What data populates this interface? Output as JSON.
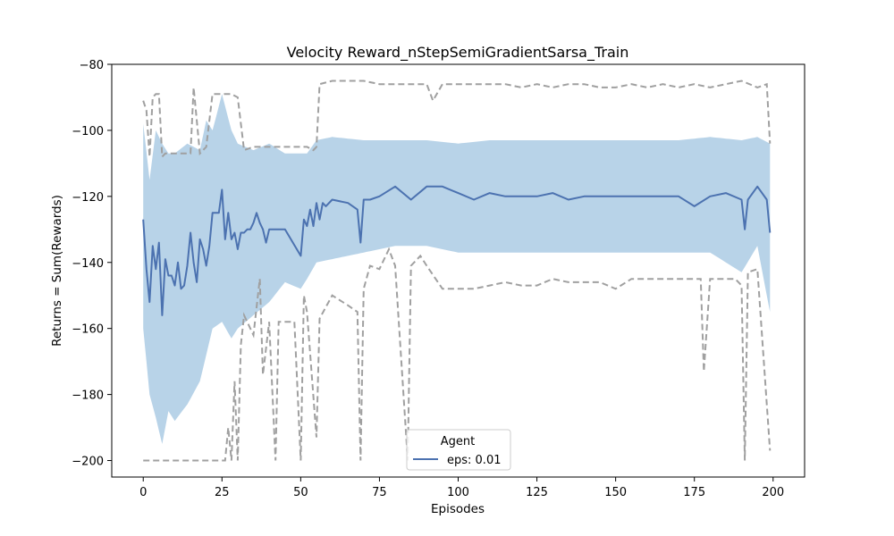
{
  "chart_data": {
    "type": "line",
    "title": "Velocity Reward_nStepSemiGradientSarsa_Train",
    "xlabel": "Episodes",
    "ylabel": "Returns = Sum(Rewards)",
    "xlim": [
      -10,
      210
    ],
    "ylim": [
      -205,
      -80
    ],
    "xticks": [
      0,
      25,
      50,
      75,
      100,
      125,
      150,
      175,
      200
    ],
    "yticks": [
      -200,
      -180,
      -160,
      -140,
      -120,
      -100,
      -80
    ],
    "grid": false,
    "legend": {
      "title": "Agent",
      "position": "lower-center"
    },
    "series": [
      {
        "name": "eps: 0.01",
        "color": "#4c72b0",
        "band_color": "#b8d3e8",
        "mean": {
          "x": [
            0,
            1,
            2,
            3,
            4,
            5,
            6,
            7,
            8,
            9,
            10,
            11,
            12,
            13,
            14,
            15,
            16,
            17,
            18,
            19,
            20,
            21,
            22,
            23,
            24,
            25,
            26,
            27,
            28,
            29,
            30,
            31,
            32,
            33,
            34,
            35,
            36,
            37,
            38,
            39,
            40,
            45,
            50,
            51,
            52,
            53,
            54,
            55,
            56,
            57,
            58,
            60,
            65,
            68,
            69,
            70,
            72,
            75,
            80,
            85,
            90,
            95,
            100,
            105,
            110,
            115,
            120,
            125,
            130,
            135,
            140,
            145,
            150,
            155,
            160,
            165,
            170,
            175,
            180,
            185,
            190,
            191,
            192,
            195,
            198,
            199
          ],
          "y": [
            -127,
            -142,
            -152,
            -135,
            -142,
            -134,
            -156,
            -139,
            -144,
            -144,
            -147,
            -140,
            -148,
            -147,
            -141,
            -131,
            -140,
            -146,
            -133,
            -136,
            -141,
            -135,
            -125,
            -125,
            -125,
            -118,
            -133,
            -125,
            -133,
            -131,
            -136,
            -131,
            -131,
            -130,
            -130,
            -128,
            -125,
            -128,
            -130,
            -134,
            -130,
            -130,
            -138,
            -127,
            -129,
            -124,
            -129,
            -122,
            -127,
            -122,
            -123,
            -121,
            -122,
            -124,
            -134,
            -121,
            -121,
            -120,
            -117,
            -121,
            -117,
            -117,
            -119,
            -121,
            -119,
            -120,
            -120,
            -120,
            -119,
            -121,
            -120,
            -120,
            -120,
            -120,
            -120,
            -120,
            -120,
            -123,
            -120,
            -119,
            -121,
            -130,
            -121,
            -117,
            -121,
            -131
          ]
        },
        "upper_std": {
          "x": [
            0,
            2,
            4,
            6,
            8,
            10,
            14,
            18,
            20,
            22,
            25,
            28,
            30,
            35,
            40,
            45,
            50,
            52,
            55,
            60,
            70,
            80,
            90,
            100,
            110,
            120,
            130,
            140,
            150,
            160,
            170,
            180,
            190,
            195,
            199
          ],
          "y": [
            -98,
            -115,
            -100,
            -104,
            -107,
            -107,
            -104,
            -106,
            -97,
            -100,
            -89,
            -100,
            -104,
            -106,
            -104,
            -107,
            -107,
            -107,
            -103,
            -102,
            -103,
            -103,
            -103,
            -104,
            -103,
            -103,
            -103,
            -103,
            -103,
            -103,
            -103,
            -102,
            -103,
            -102,
            -104
          ]
        },
        "lower_std": {
          "x": [
            0,
            2,
            4,
            6,
            8,
            10,
            14,
            18,
            20,
            22,
            25,
            28,
            30,
            35,
            40,
            45,
            50,
            52,
            55,
            60,
            70,
            80,
            90,
            100,
            110,
            120,
            130,
            140,
            150,
            160,
            170,
            180,
            190,
            195,
            199
          ],
          "y": [
            -160,
            -180,
            -187,
            -195,
            -185,
            -188,
            -183,
            -176,
            -168,
            -160,
            -158,
            -163,
            -160,
            -156,
            -152,
            -146,
            -148,
            -145,
            -140,
            -139,
            -137,
            -135,
            -135,
            -137,
            -137,
            -137,
            -137,
            -137,
            -137,
            -137,
            -137,
            -137,
            -143,
            -135,
            -155
          ]
        },
        "max": {
          "x": [
            0,
            1,
            2,
            3,
            4,
            5,
            6,
            7,
            8,
            10,
            15,
            16,
            18,
            20,
            22,
            25,
            28,
            30,
            32,
            35,
            40,
            45,
            50,
            52,
            54,
            55,
            56,
            60,
            70,
            75,
            80,
            85,
            90,
            92,
            95,
            100,
            105,
            110,
            115,
            120,
            125,
            130,
            135,
            140,
            145,
            150,
            155,
            160,
            165,
            170,
            175,
            180,
            185,
            190,
            195,
            198,
            199
          ],
          "y": [
            -91,
            -94,
            -108,
            -90,
            -89,
            -89,
            -108,
            -107,
            -107,
            -107,
            -107,
            -87,
            -107,
            -105,
            -89,
            -89,
            -89,
            -90,
            -106,
            -105,
            -105,
            -105,
            -105,
            -105,
            -106,
            -105,
            -86,
            -85,
            -85,
            -86,
            -86,
            -86,
            -86,
            -91,
            -86,
            -86,
            -86,
            -86,
            -86,
            -87,
            -86,
            -87,
            -86,
            -86,
            -87,
            -87,
            -86,
            -87,
            -86,
            -87,
            -86,
            -87,
            -86,
            -85,
            -87,
            -86,
            -104
          ]
        },
        "min": {
          "x": [
            0,
            5,
            10,
            15,
            20,
            25,
            26,
            27,
            28,
            29,
            30,
            31,
            32,
            35,
            37,
            38,
            40,
            42,
            43,
            44,
            45,
            47,
            48,
            50,
            51,
            52,
            55,
            56,
            60,
            65,
            68,
            69,
            70,
            72,
            75,
            78,
            80,
            84,
            85,
            88,
            90,
            95,
            100,
            105,
            110,
            115,
            120,
            125,
            130,
            135,
            140,
            145,
            150,
            155,
            160,
            165,
            170,
            175,
            177,
            178,
            180,
            185,
            188,
            190,
            191,
            192,
            195,
            199
          ],
          "y": [
            -200,
            -200,
            -200,
            -200,
            -200,
            -200,
            -200,
            -190,
            -200,
            -176,
            -200,
            -165,
            -156,
            -162,
            -145,
            -174,
            -158,
            -200,
            -158,
            -158,
            -158,
            -158,
            -158,
            -200,
            -150,
            -155,
            -193,
            -157,
            -150,
            -153,
            -155,
            -200,
            -148,
            -141,
            -142,
            -136,
            -141,
            -200,
            -141,
            -138,
            -141,
            -148,
            -148,
            -148,
            -147,
            -146,
            -147,
            -147,
            -145,
            -146,
            -146,
            -146,
            -148,
            -145,
            -145,
            -145,
            -145,
            -145,
            -145,
            -173,
            -145,
            -145,
            -145,
            -147,
            -200,
            -143,
            -142,
            -197
          ]
        }
      }
    ]
  }
}
